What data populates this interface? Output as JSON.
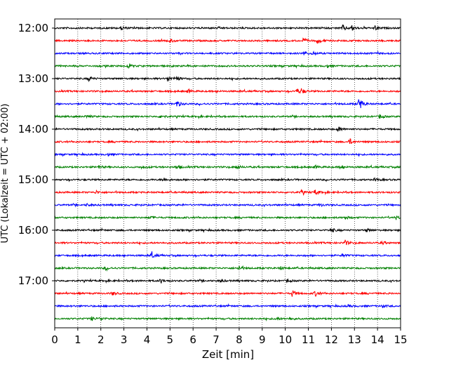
{
  "chart_data": {
    "type": "line",
    "title": "",
    "xlabel": "Zeit  [min]",
    "ylabel": "UTC (Lokalzeit = UTC + 02:00)",
    "xlim": [
      0,
      15
    ],
    "x_ticks": [
      "0",
      "1",
      "2",
      "3",
      "4",
      "5",
      "6",
      "7",
      "8",
      "9",
      "10",
      "11",
      "12",
      "13",
      "14",
      "15"
    ],
    "y_tick_labels": [
      "12:00",
      "13:00",
      "14:00",
      "15:00",
      "16:00",
      "17:00"
    ],
    "grid": "vertical dotted",
    "trace_interval_min": 15,
    "trace_colors": [
      "#000000",
      "#ff0000",
      "#0000ff",
      "#008000"
    ],
    "traces": [
      {
        "start": "12:00",
        "color": "#000000",
        "events": [
          [
            2.9,
            0.25
          ],
          [
            12.5,
            0.45
          ],
          [
            12.9,
            0.35
          ],
          [
            13.9,
            0.3
          ]
        ]
      },
      {
        "start": "12:15",
        "color": "#ff0000",
        "events": [
          [
            5.0,
            0.25
          ],
          [
            10.8,
            0.3
          ],
          [
            11.4,
            0.35
          ]
        ]
      },
      {
        "start": "12:30",
        "color": "#0000ff",
        "events": [
          [
            10.8,
            0.3
          ],
          [
            11.2,
            0.2
          ]
        ]
      },
      {
        "start": "12:45",
        "color": "#008000",
        "events": [
          [
            3.2,
            0.25
          ],
          [
            11.8,
            0.2
          ]
        ]
      },
      {
        "start": "13:00",
        "color": "#000000",
        "events": [
          [
            1.5,
            0.3
          ],
          [
            4.9,
            0.35
          ],
          [
            5.3,
            0.3
          ]
        ]
      },
      {
        "start": "13:15",
        "color": "#ff0000",
        "events": [
          [
            5.8,
            0.25
          ],
          [
            10.5,
            0.3
          ],
          [
            10.7,
            0.35
          ]
        ]
      },
      {
        "start": "13:30",
        "color": "#0000ff",
        "events": [
          [
            5.3,
            0.45
          ],
          [
            13.2,
            0.95
          ]
        ]
      },
      {
        "start": "13:45",
        "color": "#008000",
        "events": [
          [
            1.4,
            0.2
          ],
          [
            4.6,
            0.25
          ],
          [
            14.1,
            0.3
          ]
        ]
      },
      {
        "start": "14:00",
        "color": "#000000",
        "events": [
          [
            12.3,
            0.35
          ]
        ]
      },
      {
        "start": "14:15",
        "color": "#ff0000",
        "events": [
          [
            12.8,
            0.4
          ]
        ]
      },
      {
        "start": "14:30",
        "color": "#0000ff",
        "events": [
          [
            2.3,
            0.15
          ]
        ]
      },
      {
        "start": "14:45",
        "color": "#008000",
        "events": [
          [
            1.9,
            0.2
          ],
          [
            3.8,
            0.2
          ],
          [
            5.3,
            0.25
          ],
          [
            7.9,
            0.25
          ],
          [
            11.3,
            0.2
          ],
          [
            12.4,
            0.2
          ]
        ]
      },
      {
        "start": "15:00",
        "color": "#000000",
        "events": [
          [
            4.7,
            0.3
          ],
          [
            13.9,
            0.2
          ]
        ]
      },
      {
        "start": "15:15",
        "color": "#ff0000",
        "events": [
          [
            1.8,
            0.2
          ],
          [
            10.7,
            0.25
          ],
          [
            11.3,
            0.35
          ]
        ]
      },
      {
        "start": "15:30",
        "color": "#0000ff",
        "events": [
          [
            1.4,
            0.15
          ],
          [
            11.5,
            0.2
          ]
        ]
      },
      {
        "start": "15:45",
        "color": "#008000",
        "events": [
          [
            4.1,
            0.2
          ],
          [
            12.6,
            0.2
          ],
          [
            14.8,
            0.25
          ]
        ]
      },
      {
        "start": "16:00",
        "color": "#000000",
        "events": [
          [
            12.0,
            0.3
          ],
          [
            13.5,
            0.25
          ]
        ]
      },
      {
        "start": "16:15",
        "color": "#ff0000",
        "events": [
          [
            12.6,
            0.35
          ],
          [
            14.2,
            0.2
          ]
        ]
      },
      {
        "start": "16:30",
        "color": "#0000ff",
        "events": [
          [
            4.2,
            0.45
          ],
          [
            12.5,
            0.2
          ]
        ]
      },
      {
        "start": "16:45",
        "color": "#008000",
        "events": [
          [
            2.2,
            0.2
          ],
          [
            8.0,
            0.3
          ],
          [
            9.8,
            0.2
          ]
        ]
      },
      {
        "start": "17:00",
        "color": "#000000",
        "events": [
          [
            4.6,
            0.3
          ],
          [
            7.2,
            0.2
          ],
          [
            10.1,
            0.2
          ]
        ]
      },
      {
        "start": "17:15",
        "color": "#ff0000",
        "events": [
          [
            2.5,
            0.25
          ],
          [
            10.3,
            0.45
          ],
          [
            11.3,
            0.35
          ]
        ]
      },
      {
        "start": "17:30",
        "color": "#0000ff",
        "events": [
          [
            12.7,
            0.15
          ],
          [
            14.2,
            0.2
          ]
        ]
      },
      {
        "start": "17:45",
        "color": "#008000",
        "events": [
          [
            1.6,
            0.25
          ],
          [
            2.0,
            0.2
          ],
          [
            9.6,
            0.2
          ],
          [
            10.2,
            0.2
          ]
        ]
      }
    ]
  }
}
